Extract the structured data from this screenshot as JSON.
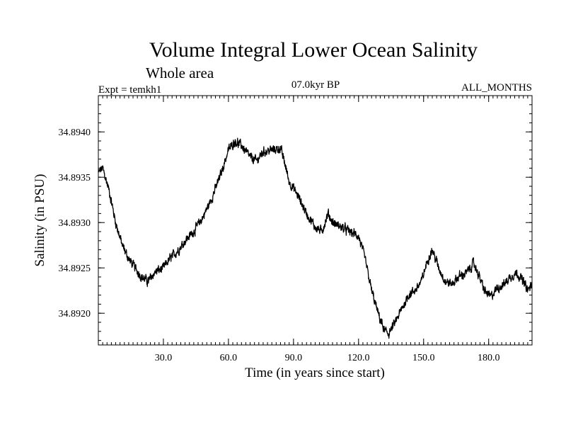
{
  "chart_data": {
    "type": "line",
    "title": "Volume Integral Lower Ocean Salinity",
    "subtitle": "Whole area",
    "expt_label": "Expt = temkh1",
    "period_label": "07.0kyr BP",
    "months_label": "ALL_MONTHS",
    "xlabel": "Time (in years since start)",
    "ylabel": "Salinity (in PSU)",
    "xlim": [
      0,
      200
    ],
    "ylim": [
      34.89165,
      34.8944
    ],
    "xticks": [
      30,
      60,
      90,
      120,
      150,
      180
    ],
    "xtick_labels": [
      "30.0",
      "60.0",
      "90.0",
      "120.0",
      "150.0",
      "180.0"
    ],
    "yticks": [
      34.892,
      34.8925,
      34.893,
      34.8935,
      34.894
    ],
    "ytick_labels": [
      "34.8920",
      "34.8925",
      "34.8930",
      "34.8935",
      "34.8940"
    ],
    "x_minor_step": 2,
    "y_minor_step": 0.0001,
    "series": [
      {
        "name": "salinity",
        "noise": 7e-05,
        "keypoints": [
          [
            0,
            34.89355
          ],
          [
            2,
            34.8936
          ],
          [
            5,
            34.89335
          ],
          [
            8,
            34.893
          ],
          [
            11,
            34.89275
          ],
          [
            14,
            34.8926
          ],
          [
            17,
            34.8925
          ],
          [
            20,
            34.8924
          ],
          [
            23,
            34.89235
          ],
          [
            26,
            34.89245
          ],
          [
            30,
            34.8925
          ],
          [
            33,
            34.8926
          ],
          [
            37,
            34.8927
          ],
          [
            40,
            34.8928
          ],
          [
            44,
            34.8929
          ],
          [
            48,
            34.89305
          ],
          [
            52,
            34.89325
          ],
          [
            56,
            34.8935
          ],
          [
            60,
            34.8938
          ],
          [
            63,
            34.8939
          ],
          [
            66,
            34.89385
          ],
          [
            70,
            34.89372
          ],
          [
            73,
            34.89368
          ],
          [
            76,
            34.89378
          ],
          [
            80,
            34.8938
          ],
          [
            84,
            34.89382
          ],
          [
            86,
            34.89365
          ],
          [
            88,
            34.89345
          ],
          [
            92,
            34.8933
          ],
          [
            96,
            34.8931
          ],
          [
            100,
            34.89295
          ],
          [
            103,
            34.8929
          ],
          [
            106,
            34.8931
          ],
          [
            108,
            34.893
          ],
          [
            112,
            34.89295
          ],
          [
            116,
            34.8929
          ],
          [
            120,
            34.89285
          ],
          [
            123,
            34.8926
          ],
          [
            126,
            34.89225
          ],
          [
            129,
            34.892
          ],
          [
            132,
            34.8918
          ],
          [
            134,
            34.89178
          ],
          [
            137,
            34.8919
          ],
          [
            140,
            34.89205
          ],
          [
            143,
            34.8922
          ],
          [
            146,
            34.89225
          ],
          [
            149,
            34.89235
          ],
          [
            152,
            34.8926
          ],
          [
            154,
            34.8927
          ],
          [
            157,
            34.8925
          ],
          [
            160,
            34.89235
          ],
          [
            163,
            34.89232
          ],
          [
            166,
            34.8924
          ],
          [
            170,
            34.89245
          ],
          [
            173,
            34.89255
          ],
          [
            175,
            34.89245
          ],
          [
            178,
            34.89225
          ],
          [
            181,
            34.89218
          ],
          [
            184,
            34.89228
          ],
          [
            187,
            34.89232
          ],
          [
            190,
            34.8924
          ],
          [
            193,
            34.89245
          ],
          [
            196,
            34.89235
          ],
          [
            198,
            34.89225
          ],
          [
            200,
            34.89232
          ]
        ]
      }
    ]
  }
}
